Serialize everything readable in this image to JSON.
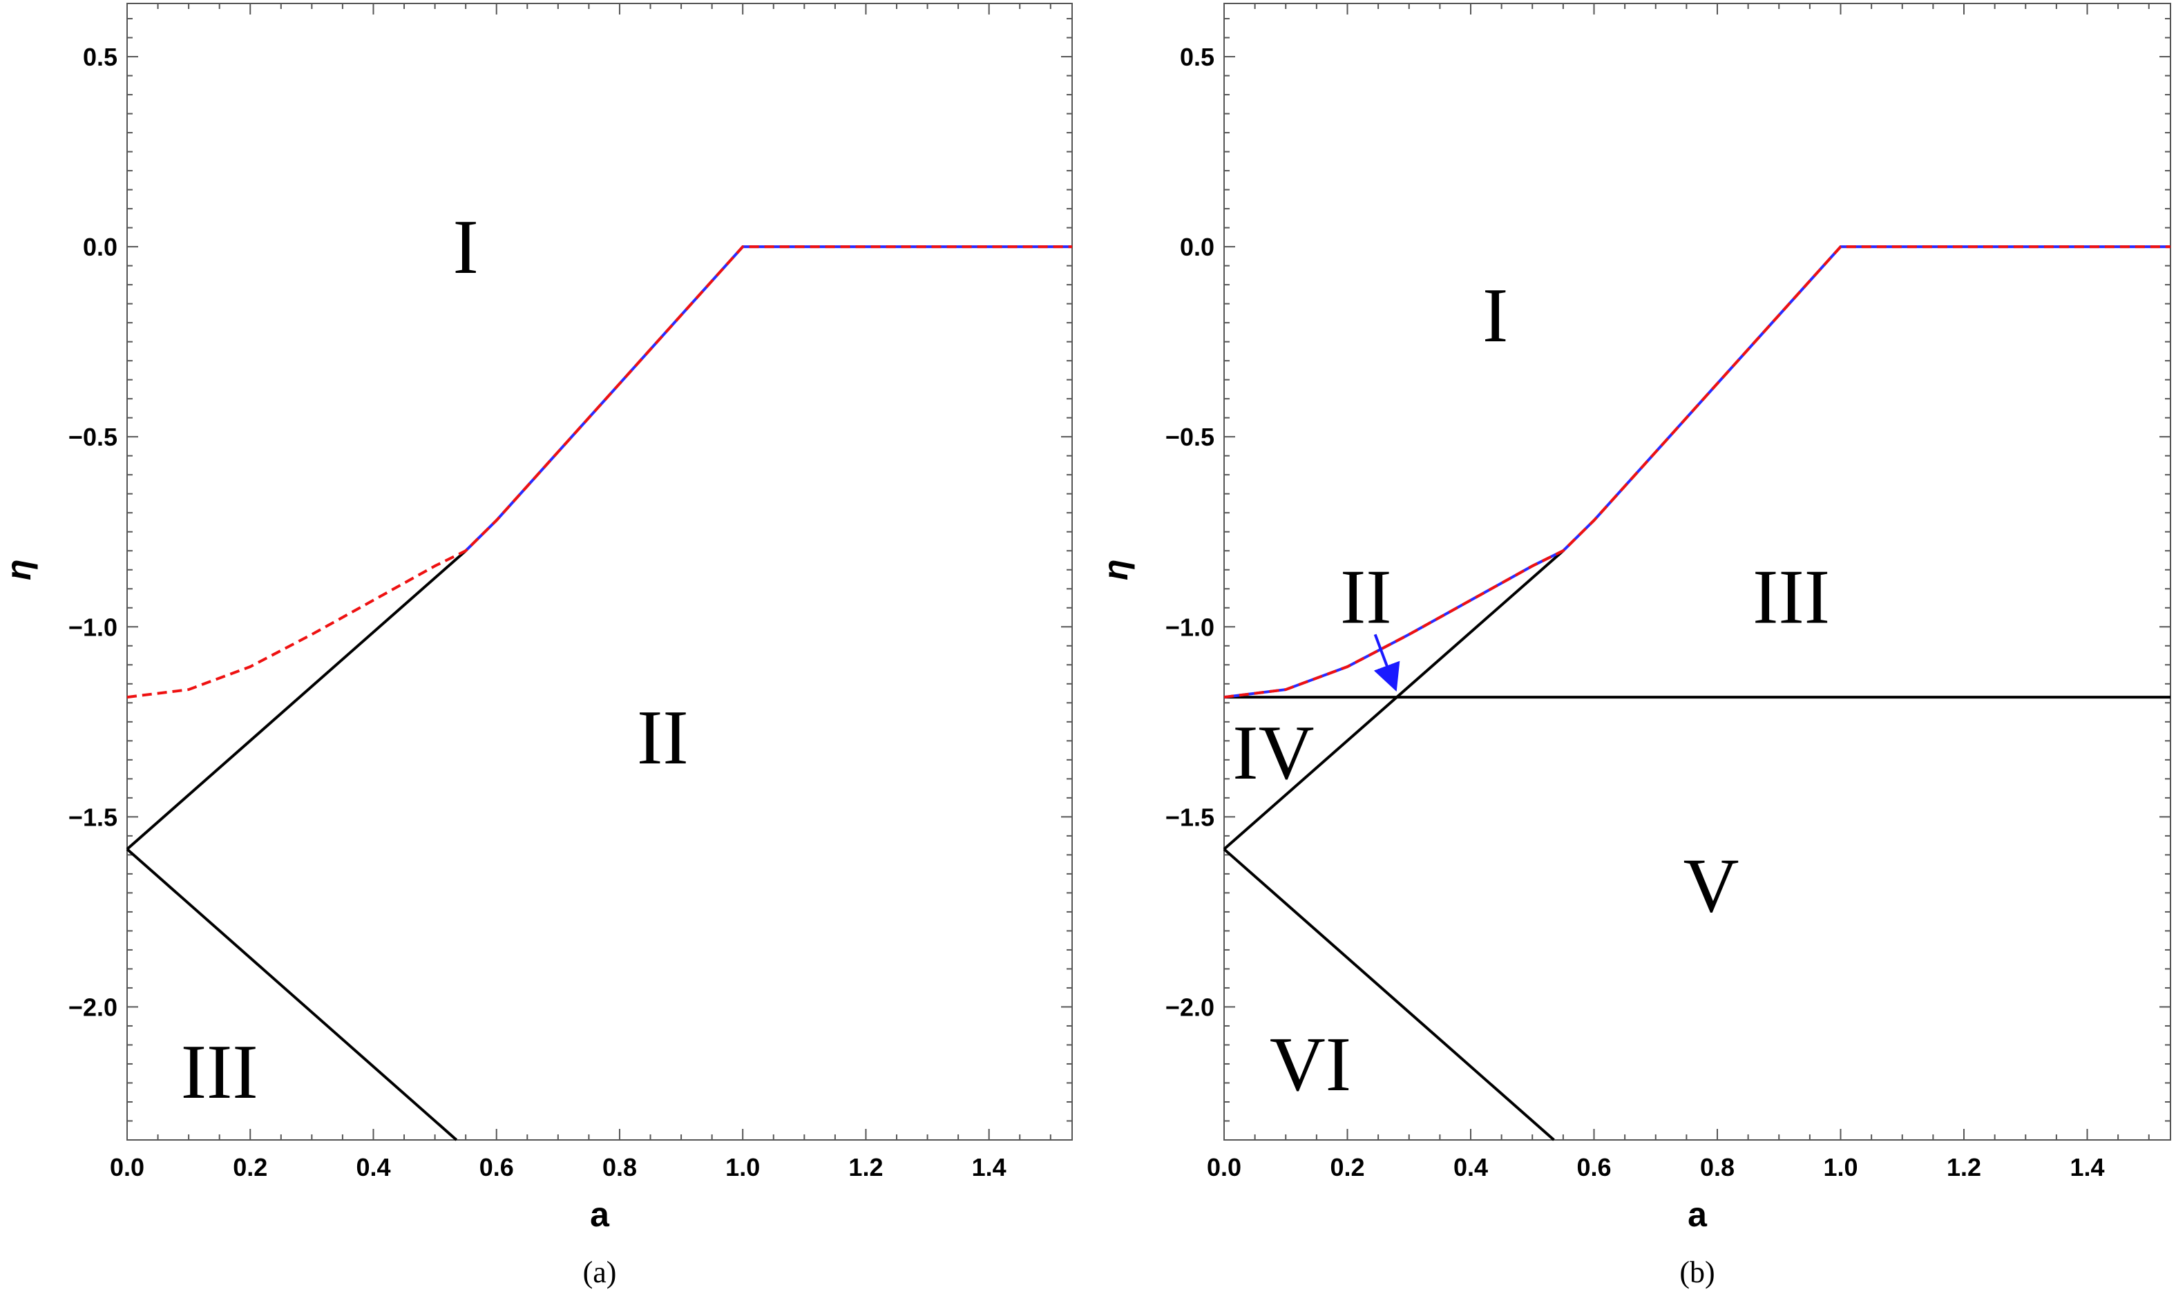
{
  "chart_data": [
    {
      "type": "line",
      "caption": "(a)",
      "xlabel": "a",
      "ylabel": "η",
      "xlim": [
        0,
        1.535
      ],
      "ylim": [
        -2.35,
        0.64
      ],
      "x_ticks": [
        "0.0",
        "0.2",
        "0.4",
        "0.6",
        "0.8",
        "1.0",
        "1.2",
        "1.4"
      ],
      "y_ticks": [
        "0.5",
        "0.0",
        "−0.5",
        "−1.0",
        "−1.5",
        "−2.0"
      ],
      "regions": [
        {
          "label": "I",
          "x": 0.55,
          "y": 0.0
        },
        {
          "label": "II",
          "x": 0.87,
          "y": -1.29
        },
        {
          "label": "III",
          "x": 0.15,
          "y": -2.17
        }
      ],
      "series": [
        {
          "style": "solid-black",
          "x": [
            0.0,
            0.55
          ],
          "y": [
            -1.585,
            -0.8
          ]
        },
        {
          "style": "solid-black",
          "x": [
            0.0,
            0.535
          ],
          "y": [
            -1.585,
            -2.35
          ]
        },
        {
          "style": "solid-blue",
          "x": [
            0.55,
            0.6,
            0.7,
            0.8,
            0.9,
            1.0,
            1.535
          ],
          "y": [
            -0.8,
            -0.72,
            -0.54,
            -0.36,
            -0.18,
            0.0,
            0.0
          ]
        },
        {
          "style": "dashed-red",
          "x": [
            0.0,
            0.1,
            0.2,
            0.3,
            0.4,
            0.5,
            0.55,
            0.6,
            0.7,
            0.8,
            0.9,
            1.0,
            1.535
          ],
          "y": [
            -1.185,
            -1.165,
            -1.105,
            -1.02,
            -0.93,
            -0.84,
            -0.8,
            -0.72,
            -0.54,
            -0.36,
            -0.18,
            0.0,
            0.0
          ]
        }
      ]
    },
    {
      "type": "line",
      "caption": "(b)",
      "xlabel": "a",
      "ylabel": "η",
      "xlim": [
        0,
        1.535
      ],
      "ylim": [
        -2.35,
        0.64
      ],
      "x_ticks": [
        "0.0",
        "0.2",
        "0.4",
        "0.6",
        "0.8",
        "1.0",
        "1.2",
        "1.4"
      ],
      "y_ticks": [
        "0.5",
        "0.0",
        "−0.5",
        "−1.0",
        "−1.5",
        "−2.0"
      ],
      "regions": [
        {
          "label": "I",
          "x": 0.44,
          "y": -0.18
        },
        {
          "label": "II",
          "x": 0.23,
          "y": -0.92
        },
        {
          "label": "III",
          "x": 0.92,
          "y": -0.92
        },
        {
          "label": "IV",
          "x": 0.08,
          "y": -1.33
        },
        {
          "label": "V",
          "x": 0.79,
          "y": -1.68
        },
        {
          "label": "VI",
          "x": 0.14,
          "y": -2.15
        }
      ],
      "series": [
        {
          "style": "solid-black",
          "x": [
            0.0,
            0.55
          ],
          "y": [
            -1.585,
            -0.8
          ]
        },
        {
          "style": "solid-black",
          "x": [
            0.0,
            0.535
          ],
          "y": [
            -1.585,
            -2.35
          ]
        },
        {
          "style": "solid-black",
          "x": [
            0.0,
            1.535
          ],
          "y": [
            -1.185,
            -1.185
          ]
        },
        {
          "style": "solid-blue",
          "x": [
            0.0,
            0.1,
            0.2,
            0.3,
            0.4,
            0.5,
            0.55,
            0.6,
            0.7,
            0.8,
            0.9,
            1.0,
            1.535
          ],
          "y": [
            -1.185,
            -1.165,
            -1.105,
            -1.02,
            -0.93,
            -0.84,
            -0.8,
            -0.72,
            -0.54,
            -0.36,
            -0.18,
            0.0,
            0.0
          ]
        },
        {
          "style": "dashed-red",
          "x": [
            0.0,
            0.1,
            0.2,
            0.3,
            0.4,
            0.5,
            0.55,
            0.6,
            0.7,
            0.8,
            0.9,
            1.0,
            1.535
          ],
          "y": [
            -1.185,
            -1.165,
            -1.105,
            -1.02,
            -0.93,
            -0.84,
            -0.8,
            -0.72,
            -0.54,
            -0.36,
            -0.18,
            0.0,
            0.0
          ]
        }
      ],
      "annotation_arrow": {
        "from": [
          0.245,
          -1.02
        ],
        "to": [
          0.275,
          -1.15
        ],
        "color": "#1a1aff"
      }
    }
  ],
  "colors": {
    "curve_blue": "#2a2aff",
    "curve_red": "#ee1111",
    "line_black": "#000000",
    "arrow_blue": "#1a1aff"
  }
}
